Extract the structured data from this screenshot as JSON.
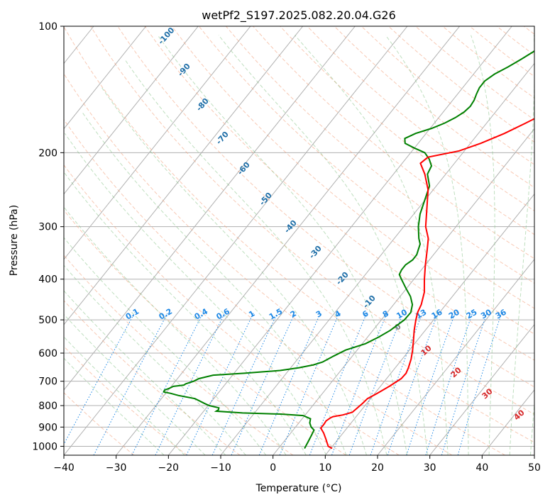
{
  "chart_data": {
    "type": "line",
    "title": "wetPf2_S197.2025.082.20.04.G26",
    "xlabel": "Temperature (°C)",
    "ylabel": "Pressure (hPa)",
    "xlim": [
      -40,
      50
    ],
    "ylim": [
      1050,
      100
    ],
    "y_scale": "log",
    "grid": true,
    "x_ticks": [
      "−40",
      "−30",
      "−20",
      "−10",
      "0",
      "10",
      "20",
      "30",
      "40",
      "50"
    ],
    "y_ticks": [
      "100",
      "200",
      "300",
      "400",
      "500",
      "600",
      "700",
      "800",
      "900",
      "1000"
    ],
    "dry_adiabat_labels": [
      "-100",
      "-90",
      "-80",
      "-70",
      "-60",
      "-50",
      "-40",
      "-30",
      "-20",
      "-10"
    ],
    "moist_adiabat_labels": [
      "0",
      "10",
      "20",
      "30",
      "40"
    ],
    "mixing_ratio_labels": [
      "0.1",
      "0.2",
      "0.4",
      "0.6",
      "1",
      "1.5",
      "2",
      "3",
      "4",
      "6",
      "8",
      "10",
      "13",
      "16",
      "20",
      "25",
      "30",
      "36"
    ],
    "series": [
      {
        "role": "temperature",
        "color": "#ff0000",
        "points": [
          [
            1012,
            10.3
          ],
          [
            1000,
            9.2
          ],
          [
            960,
            7.6
          ],
          [
            930,
            6.3
          ],
          [
            905,
            5.0
          ],
          [
            885,
            5.0
          ],
          [
            870,
            4.9
          ],
          [
            855,
            5.3
          ],
          [
            850,
            5.6
          ],
          [
            842,
            7.2
          ],
          [
            830,
            8.6
          ],
          [
            810,
            8.9
          ],
          [
            790,
            9.2
          ],
          [
            770,
            9.4
          ],
          [
            750,
            10.4
          ],
          [
            720,
            11.7
          ],
          [
            690,
            12.8
          ],
          [
            670,
            12.9
          ],
          [
            650,
            12.5
          ],
          [
            620,
            11.7
          ],
          [
            590,
            10.6
          ],
          [
            560,
            9.3
          ],
          [
            530,
            7.9
          ],
          [
            500,
            6.6
          ],
          [
            480,
            5.8
          ],
          [
            460,
            5.3
          ],
          [
            430,
            4.0
          ],
          [
            400,
            2.0
          ],
          [
            370,
            0.0
          ],
          [
            340,
            -2.0
          ],
          [
            320,
            -3.5
          ],
          [
            300,
            -5.8
          ],
          [
            270,
            -8.5
          ],
          [
            245,
            -11.0
          ],
          [
            225,
            -14.0
          ],
          [
            212,
            -16.5
          ],
          [
            205,
            -16.0
          ],
          [
            198,
            -11.0
          ],
          [
            190,
            -8.0
          ],
          [
            180,
            -5.0
          ],
          [
            170,
            -2.5
          ],
          [
            160,
            0.0
          ],
          [
            150,
            2.5
          ],
          [
            140,
            4.5
          ],
          [
            130,
            7.0
          ],
          [
            125,
            8.0
          ],
          [
            120,
            8.0
          ],
          [
            110,
            9.0
          ],
          [
            105,
            11.0
          ],
          [
            100,
            12.7
          ]
        ]
      },
      {
        "role": "dewpoint",
        "color": "#008000",
        "points": [
          [
            1012,
            5.0
          ],
          [
            1000,
            4.9
          ],
          [
            970,
            4.6
          ],
          [
            940,
            4.3
          ],
          [
            915,
            4.0
          ],
          [
            900,
            3.0
          ],
          [
            880,
            2.1
          ],
          [
            860,
            1.6
          ],
          [
            845,
            -0.3
          ],
          [
            838,
            -4.8
          ],
          [
            833,
            -12.3
          ],
          [
            825,
            -17.6
          ],
          [
            818,
            -17.4
          ],
          [
            810,
            -17.6
          ],
          [
            800,
            -19.8
          ],
          [
            790,
            -21.1
          ],
          [
            770,
            -23.6
          ],
          [
            757,
            -27.2
          ],
          [
            748,
            -29.1
          ],
          [
            745,
            -29.9
          ],
          [
            742,
            -30.6
          ],
          [
            735,
            -30.7
          ],
          [
            728,
            -30.1
          ],
          [
            720,
            -29.6
          ],
          [
            715,
            -27.8
          ],
          [
            710,
            -27.6
          ],
          [
            700,
            -26.5
          ],
          [
            690,
            -25.9
          ],
          [
            677,
            -23.7
          ],
          [
            670,
            -18.0
          ],
          [
            660,
            -11.6
          ],
          [
            650,
            -8.4
          ],
          [
            640,
            -6.1
          ],
          [
            630,
            -4.8
          ],
          [
            610,
            -3.6
          ],
          [
            590,
            -2.2
          ],
          [
            570,
            0.6
          ],
          [
            550,
            2.1
          ],
          [
            530,
            3.3
          ],
          [
            500,
            4.4
          ],
          [
            480,
            4.5
          ],
          [
            460,
            3.6
          ],
          [
            440,
            2.0
          ],
          [
            420,
            -0.2
          ],
          [
            400,
            -2.4
          ],
          [
            390,
            -3.5
          ],
          [
            380,
            -3.8
          ],
          [
            370,
            -3.8
          ],
          [
            360,
            -3.2
          ],
          [
            350,
            -3.2
          ],
          [
            340,
            -3.7
          ],
          [
            330,
            -4.2
          ],
          [
            320,
            -5.3
          ],
          [
            300,
            -7.2
          ],
          [
            280,
            -8.8
          ],
          [
            260,
            -10.0
          ],
          [
            240,
            -11.3
          ],
          [
            225,
            -13.5
          ],
          [
            215,
            -14.0
          ],
          [
            207,
            -15.5
          ],
          [
            200,
            -17.3
          ],
          [
            195,
            -20.0
          ],
          [
            190,
            -22.5
          ],
          [
            185,
            -23.3
          ],
          [
            180,
            -22.0
          ],
          [
            175,
            -19.7
          ],
          [
            170,
            -18.0
          ],
          [
            165,
            -16.8
          ],
          [
            160,
            -16.0
          ],
          [
            155,
            -15.7
          ],
          [
            150,
            -15.9
          ],
          [
            145,
            -16.4
          ],
          [
            140,
            -16.8
          ],
          [
            135,
            -16.8
          ],
          [
            130,
            -16.0
          ],
          [
            125,
            -14.5
          ],
          [
            120,
            -13.2
          ],
          [
            115,
            -12.0
          ],
          [
            110,
            -11.0
          ],
          [
            105,
            -10.0
          ],
          [
            100,
            -9.0
          ]
        ]
      }
    ]
  }
}
